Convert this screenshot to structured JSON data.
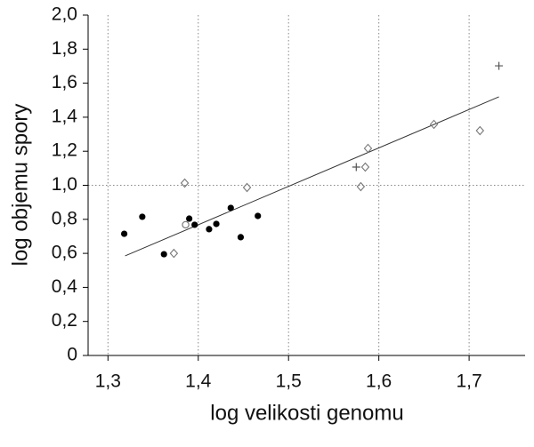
{
  "chart_data": {
    "type": "scatter",
    "xlabel": "log velikosti genomu",
    "ylabel": "log objemu spory",
    "xlim": [
      1.278,
      1.762
    ],
    "ylim": [
      0,
      2.0
    ],
    "xticks": [
      {
        "value": 1.3,
        "label": "1,3"
      },
      {
        "value": 1.4,
        "label": "1,4"
      },
      {
        "value": 1.5,
        "label": "1,5"
      },
      {
        "value": 1.6,
        "label": "1,6"
      },
      {
        "value": 1.7,
        "label": "1,7"
      }
    ],
    "yticks": [
      0,
      {
        "value": 0.2,
        "label": "0,2"
      },
      {
        "value": 0.4,
        "label": "0,4"
      },
      {
        "value": 0.6,
        "label": "0,6"
      },
      {
        "value": 0.8,
        "label": "0,8"
      },
      {
        "value": 1.0,
        "label": "1,0"
      },
      {
        "value": 1.2,
        "label": "1,2"
      },
      {
        "value": 1.4,
        "label": "1,4"
      },
      {
        "value": 1.6,
        "label": "1,6"
      },
      {
        "value": 1.8,
        "label": "1,8"
      },
      {
        "value": 2.0,
        "label": "2,0"
      }
    ],
    "x_grid": true,
    "y_reference_line": 1.0,
    "series": [
      {
        "marker": "filled-circle",
        "color": "#000000",
        "x": [
          1.318,
          1.338,
          1.362,
          1.39,
          1.396,
          1.412,
          1.42,
          1.436,
          1.447,
          1.466
        ],
        "values": [
          0.715,
          0.815,
          0.595,
          0.804,
          0.768,
          0.742,
          0.773,
          0.867,
          0.695,
          0.82
        ]
      },
      {
        "marker": "open-circle",
        "color": "#777777",
        "x": [
          1.386
        ],
        "values": [
          0.768
        ]
      },
      {
        "marker": "diamond",
        "color": "#777777",
        "x": [
          1.385,
          1.373,
          1.454,
          1.58,
          1.585,
          1.588,
          1.661,
          1.712
        ],
        "values": [
          1.013,
          0.6,
          0.987,
          0.992,
          1.107,
          1.217,
          1.358,
          1.321
        ]
      },
      {
        "marker": "plus",
        "color": "#555555",
        "x": [
          1.575,
          1.733
        ],
        "values": [
          1.107,
          1.702
        ]
      }
    ],
    "trend_line": {
      "x": [
        1.319,
        1.733
      ],
      "values": [
        0.585,
        1.52
      ],
      "color": "#333333"
    }
  }
}
